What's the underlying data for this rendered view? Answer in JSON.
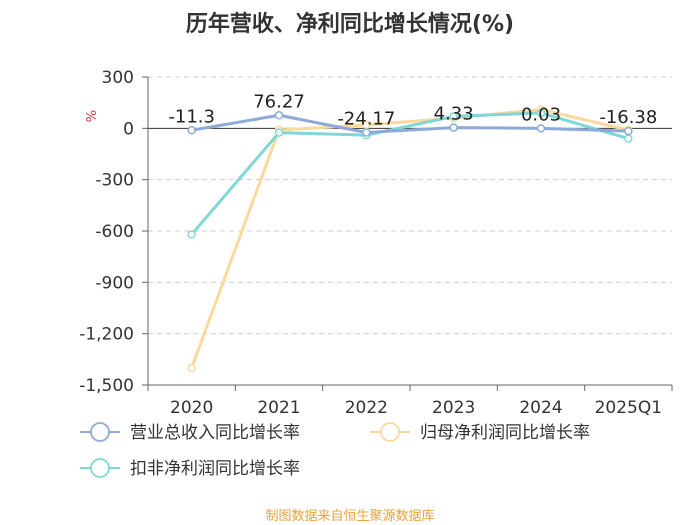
{
  "title": "历年营收、净利同比增长情况(%)",
  "source": "制图数据来自恒生聚源数据库",
  "chart_data": {
    "type": "line",
    "title": "历年营收、净利同比增长情况(%)",
    "ylabel": "%",
    "xlabel": "",
    "categories": [
      "2020",
      "2021",
      "2022",
      "2023",
      "2024",
      "2025Q1"
    ],
    "ylim": [
      -1500,
      300
    ],
    "yticks": [
      300,
      0,
      -300,
      -600,
      -900,
      -1200,
      -1500
    ],
    "ytick_labels": [
      "300",
      "0",
      "-300",
      "-600",
      "-900",
      "-1,200",
      "-1,500"
    ],
    "grid": true,
    "legend_position": "bottom",
    "series": [
      {
        "name": "营业总收入同比增长率",
        "color": "#8eaadb",
        "values": [
          -11.3,
          76.27,
          -24.17,
          4.33,
          0.03,
          -16.38
        ],
        "labels": [
          "-11.3",
          "76.27",
          "-24.17",
          "4.33",
          "0.03",
          "-16.38"
        ]
      },
      {
        "name": "归母净利润同比增长率",
        "color": "#fbd99a",
        "values": [
          -1400,
          -10,
          20,
          60,
          110,
          -10
        ]
      },
      {
        "name": "扣非净利润同比增长率",
        "color": "#7fd8d6",
        "values": [
          -620,
          -25,
          -40,
          70,
          90,
          -60
        ]
      }
    ]
  }
}
